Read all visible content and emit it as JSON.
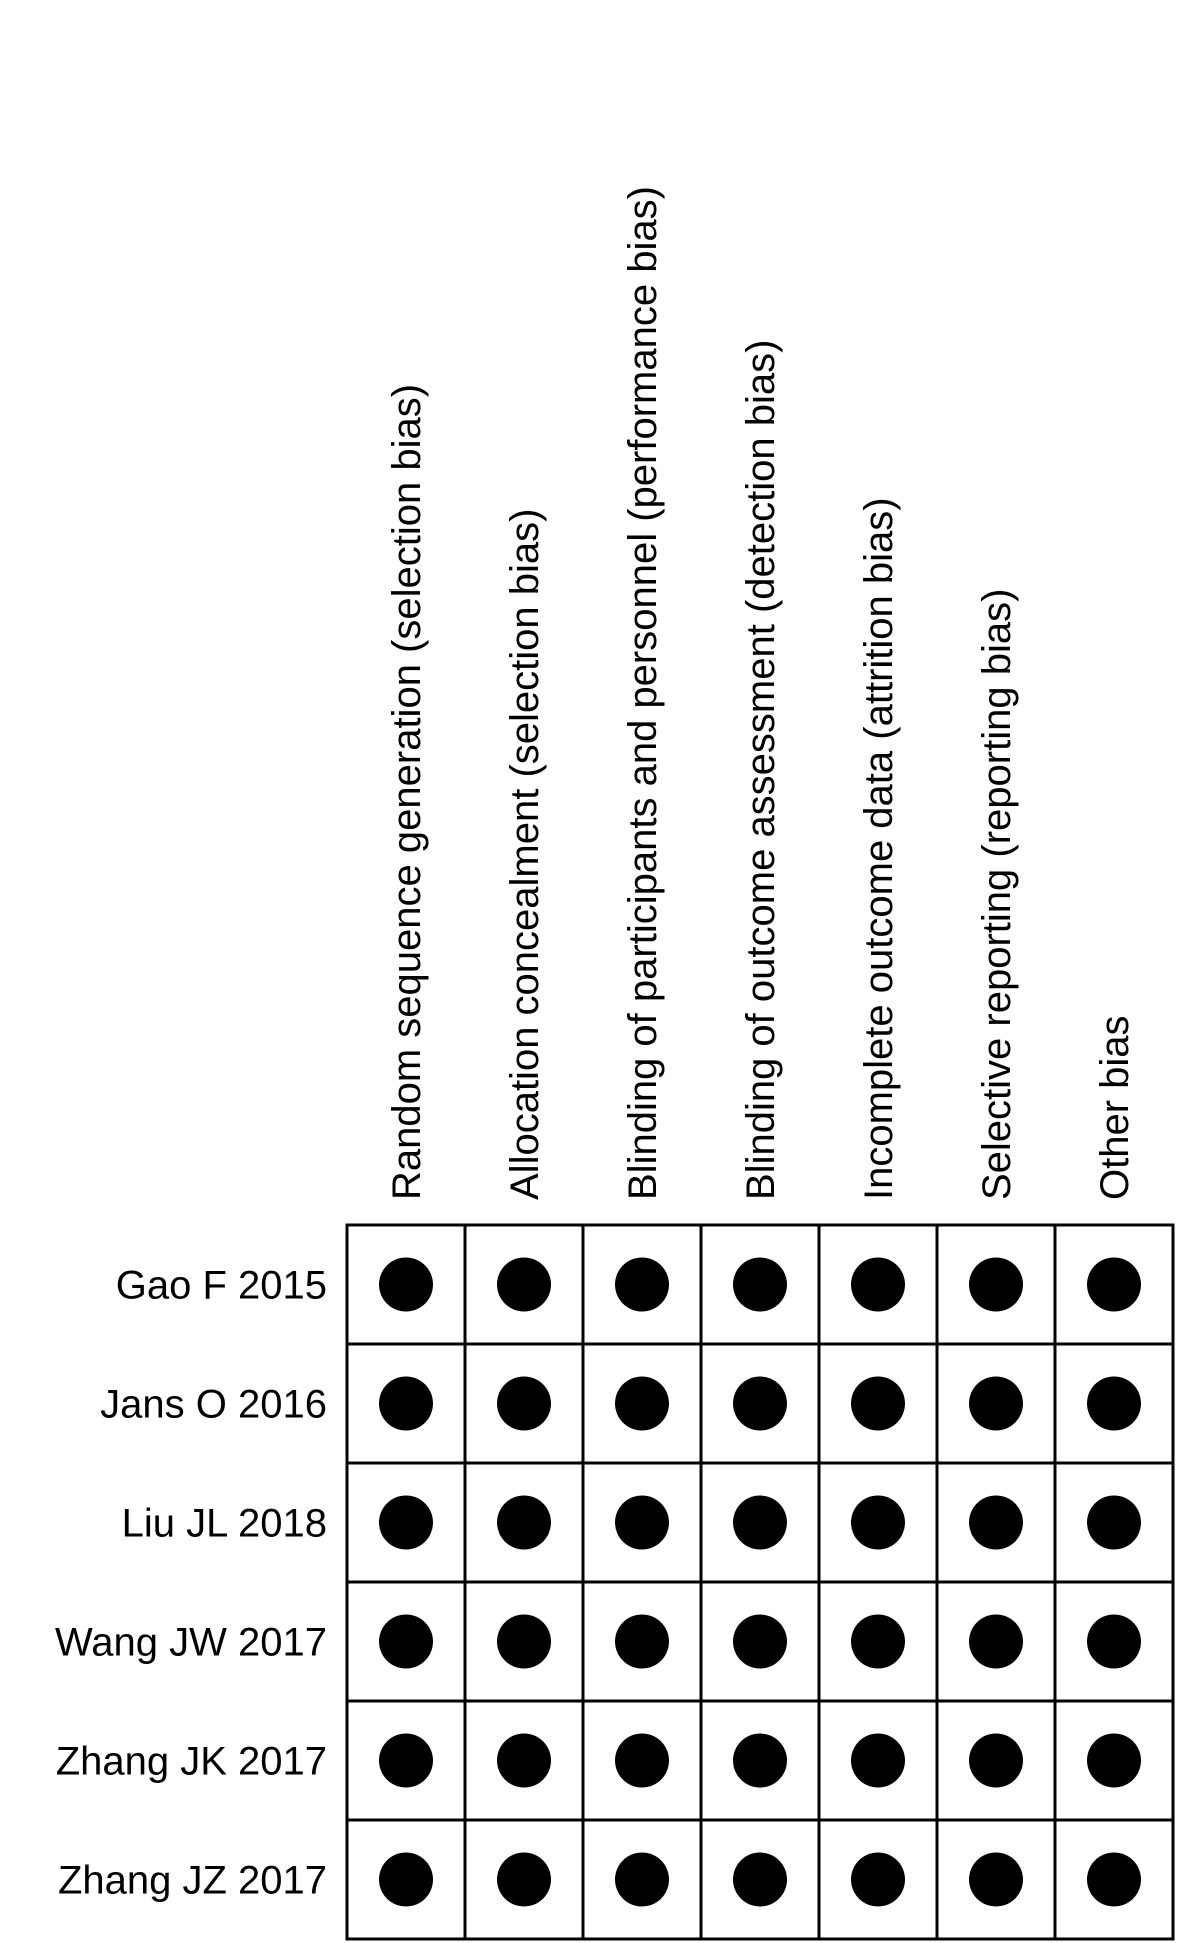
{
  "chart_data": {
    "type": "table",
    "columns": [
      "Random sequence generation (selection bias)",
      "Allocation concealment (selection bias)",
      "Blinding of participants and personnel (performance bias)",
      "Blinding of outcome assessment (detection bias)",
      "Incomplete outcome data (attrition bias)",
      "Selective reporting (reporting bias)",
      "Other bias"
    ],
    "rows": [
      "Gao F 2015",
      "Jans O 2016",
      "Liu JL 2018",
      "Wang JW 2017",
      "Zhang JK 2017",
      "Zhang JZ 2017"
    ],
    "values": [
      [
        1,
        1,
        1,
        1,
        1,
        1,
        1
      ],
      [
        1,
        1,
        1,
        1,
        1,
        1,
        1
      ],
      [
        1,
        1,
        1,
        1,
        1,
        1,
        1
      ],
      [
        1,
        1,
        1,
        1,
        1,
        1,
        1
      ],
      [
        1,
        1,
        1,
        1,
        1,
        1,
        1
      ],
      [
        1,
        1,
        1,
        1,
        1,
        1,
        1
      ]
    ],
    "marker": "filled-circle",
    "colors": {
      "marker": "#000000",
      "grid": "#000000",
      "background": "#ffffff"
    }
  }
}
